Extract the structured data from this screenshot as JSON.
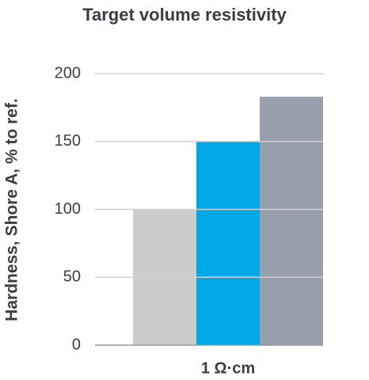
{
  "chart_data": {
    "type": "bar",
    "title": "Target volume resistivity",
    "y_label": "Hardness, Shore A, % to ref.",
    "categories": [
      "1 Ω·cm"
    ],
    "series": [
      {
        "color": "#cccccc",
        "values": [
          100
        ]
      },
      {
        "color": "#00a8e8",
        "values": [
          150
        ]
      },
      {
        "color": "#98a0ae",
        "values": [
          183
        ]
      }
    ],
    "ylim": [
      0,
      200
    ],
    "yticks": [
      0,
      50,
      100,
      150,
      200
    ],
    "grid": true
  }
}
